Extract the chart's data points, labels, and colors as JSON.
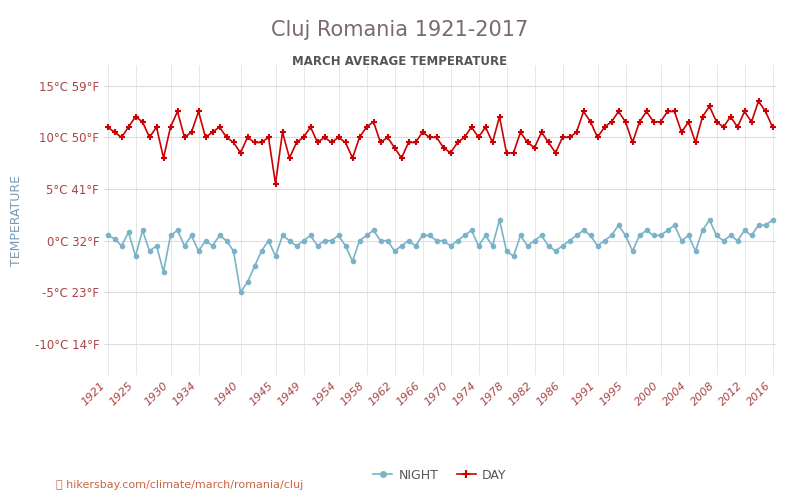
{
  "title": "Cluj Romania 1921-2017",
  "subtitle": "MARCH AVERAGE TEMPERATURE",
  "ylabel": "TEMPERATURE",
  "xlabel_url": "hikersbay.com/climate/march/romania/cluj",
  "yticks_c": [
    15,
    10,
    5,
    0,
    -5,
    -10
  ],
  "yticks_f": [
    59,
    50,
    41,
    32,
    23,
    14
  ],
  "ylim": [
    -13,
    17
  ],
  "year_start": 1921,
  "year_end": 2016,
  "xtick_years": [
    1921,
    1925,
    1930,
    1934,
    1940,
    1945,
    1949,
    1954,
    1958,
    1962,
    1966,
    1970,
    1974,
    1978,
    1982,
    1986,
    1991,
    1995,
    2000,
    2004,
    2008,
    2012,
    2016
  ],
  "night_color": "#7ab3c8",
  "day_color": "#cc0000",
  "title_color": "#7a6a6a",
  "subtitle_color": "#555555",
  "ylabel_color": "#7a9ab5",
  "tick_label_color": "#aa4444",
  "url_color": "#cc6644",
  "grid_color": "#dddddd",
  "background_color": "#ffffff",
  "night_data": {
    "years": [
      1921,
      1922,
      1923,
      1924,
      1925,
      1926,
      1927,
      1928,
      1929,
      1930,
      1931,
      1932,
      1933,
      1934,
      1935,
      1936,
      1937,
      1938,
      1939,
      1940,
      1941,
      1942,
      1943,
      1944,
      1945,
      1946,
      1947,
      1948,
      1949,
      1950,
      1951,
      1952,
      1953,
      1954,
      1955,
      1956,
      1957,
      1958,
      1959,
      1960,
      1961,
      1962,
      1963,
      1964,
      1965,
      1966,
      1967,
      1968,
      1969,
      1970,
      1971,
      1972,
      1973,
      1974,
      1975,
      1976,
      1977,
      1978,
      1979,
      1980,
      1981,
      1982,
      1983,
      1984,
      1985,
      1986,
      1987,
      1988,
      1989,
      1990,
      1991,
      1992,
      1993,
      1994,
      1995,
      1996,
      1997,
      1998,
      1999,
      2000,
      2001,
      2002,
      2003,
      2004,
      2005,
      2006,
      2007,
      2008,
      2009,
      2010,
      2011,
      2012,
      2013,
      2014,
      2015,
      2016
    ],
    "values": [
      0.5,
      0.2,
      -0.5,
      0.8,
      -1.5,
      1.0,
      -1.0,
      -0.5,
      -3.0,
      0.5,
      1.0,
      -0.5,
      0.5,
      -1.0,
      0.0,
      -0.5,
      0.5,
      0.0,
      -1.0,
      -5.0,
      -4.0,
      -2.5,
      -1.0,
      0.0,
      -1.5,
      0.5,
      0.0,
      -0.5,
      0.0,
      0.5,
      -0.5,
      0.0,
      0.0,
      0.5,
      -0.5,
      -2.0,
      0.0,
      0.5,
      1.0,
      0.0,
      0.0,
      -1.0,
      -0.5,
      0.0,
      -0.5,
      0.5,
      0.5,
      0.0,
      0.0,
      -0.5,
      0.0,
      0.5,
      1.0,
      -0.5,
      0.5,
      -0.5,
      2.0,
      -1.0,
      -1.5,
      0.5,
      -0.5,
      0.0,
      0.5,
      -0.5,
      -1.0,
      -0.5,
      0.0,
      0.5,
      1.0,
      0.5,
      -0.5,
      0.0,
      0.5,
      1.5,
      0.5,
      -1.0,
      0.5,
      1.0,
      0.5,
      0.5,
      1.0,
      1.5,
      0.0,
      0.5,
      -1.0,
      1.0,
      2.0,
      0.5,
      0.0,
      0.5,
      0.0,
      1.0,
      0.5,
      1.5,
      1.5,
      2.0
    ]
  },
  "day_data": {
    "years": [
      1921,
      1922,
      1923,
      1924,
      1925,
      1926,
      1927,
      1928,
      1929,
      1930,
      1931,
      1932,
      1933,
      1934,
      1935,
      1936,
      1937,
      1938,
      1939,
      1940,
      1941,
      1942,
      1943,
      1944,
      1945,
      1946,
      1947,
      1948,
      1949,
      1950,
      1951,
      1952,
      1953,
      1954,
      1955,
      1956,
      1957,
      1958,
      1959,
      1960,
      1961,
      1962,
      1963,
      1964,
      1965,
      1966,
      1967,
      1968,
      1969,
      1970,
      1971,
      1972,
      1973,
      1974,
      1975,
      1976,
      1977,
      1978,
      1979,
      1980,
      1981,
      1982,
      1983,
      1984,
      1985,
      1986,
      1987,
      1988,
      1989,
      1990,
      1991,
      1992,
      1993,
      1994,
      1995,
      1996,
      1997,
      1998,
      1999,
      2000,
      2001,
      2002,
      2003,
      2004,
      2005,
      2006,
      2007,
      2008,
      2009,
      2010,
      2011,
      2012,
      2013,
      2014,
      2015,
      2016
    ],
    "values": [
      11.0,
      10.5,
      10.0,
      11.0,
      12.0,
      11.5,
      10.0,
      11.0,
      8.0,
      11.0,
      12.5,
      10.0,
      10.5,
      12.5,
      10.0,
      10.5,
      11.0,
      10.0,
      9.5,
      8.5,
      10.0,
      9.5,
      9.5,
      10.0,
      5.5,
      10.5,
      8.0,
      9.5,
      10.0,
      11.0,
      9.5,
      10.0,
      9.5,
      10.0,
      9.5,
      8.0,
      10.0,
      11.0,
      11.5,
      9.5,
      10.0,
      9.0,
      8.0,
      9.5,
      9.5,
      10.5,
      10.0,
      10.0,
      9.0,
      8.5,
      9.5,
      10.0,
      11.0,
      10.0,
      11.0,
      9.5,
      12.0,
      8.5,
      8.5,
      10.5,
      9.5,
      9.0,
      10.5,
      9.5,
      8.5,
      10.0,
      10.0,
      10.5,
      12.5,
      11.5,
      10.0,
      11.0,
      11.5,
      12.5,
      11.5,
      9.5,
      11.5,
      12.5,
      11.5,
      11.5,
      12.5,
      12.5,
      10.5,
      11.5,
      9.5,
      12.0,
      13.0,
      11.5,
      11.0,
      12.0,
      11.0,
      12.5,
      11.5,
      13.5,
      12.5,
      11.0
    ]
  }
}
